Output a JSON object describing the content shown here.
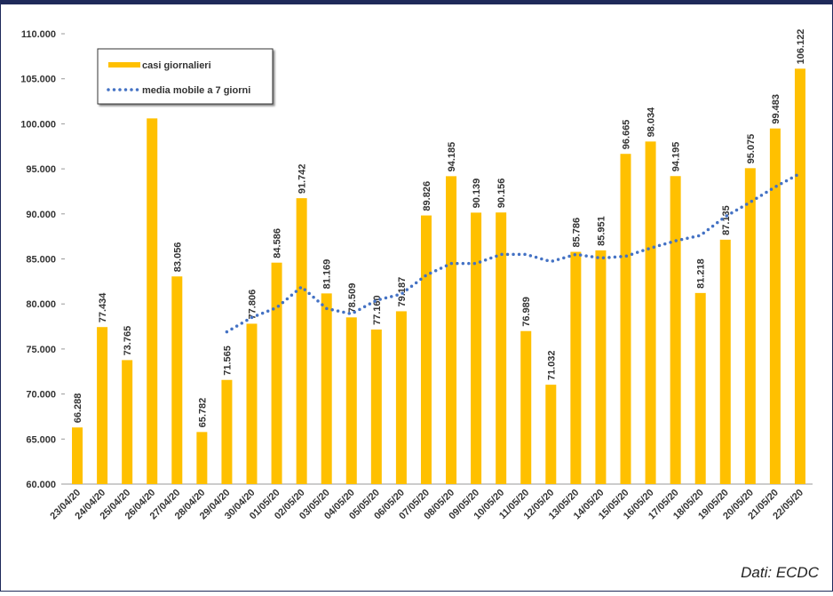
{
  "chart_data": {
    "type": "bar",
    "categories": [
      "23/04/20",
      "24/04/20",
      "25/04/20",
      "26/04/20",
      "27/04/20",
      "28/04/20",
      "29/04/20",
      "30/04/20",
      "01/05/20",
      "02/05/20",
      "03/05/20",
      "04/05/20",
      "05/05/20",
      "06/05/20",
      "07/05/20",
      "08/05/20",
      "09/05/20",
      "10/05/20",
      "11/05/20",
      "12/05/20",
      "13/05/20",
      "14/05/20",
      "15/05/20",
      "16/05/20",
      "17/05/20",
      "18/05/20",
      "19/05/20",
      "20/05/20",
      "21/05/20",
      "22/05/20"
    ],
    "series": [
      {
        "name": "casi giornalieri",
        "type": "bar",
        "color": "#ffc000",
        "values": [
          66288,
          77434,
          73765,
          100600,
          83056,
          65782,
          71565,
          77806,
          84586,
          91742,
          81169,
          78509,
          77160,
          79187,
          89826,
          94185,
          90139,
          90156,
          76989,
          71032,
          85786,
          85951,
          96665,
          98034,
          94195,
          81218,
          87135,
          95075,
          99483,
          106122
        ],
        "value_labels": [
          "66.288",
          "77.434",
          "73.765",
          null,
          "83.056",
          "65.782",
          "71.565",
          "77.806",
          "84.586",
          "91.742",
          "81.169",
          "78.509",
          "77.160",
          "79.187",
          "89.826",
          "94.185",
          "90.139",
          "90.156",
          "76.989",
          "71.032",
          "85.786",
          "85.951",
          "96.665",
          "98.034",
          "94.195",
          "81.218",
          "87.135",
          "95.075",
          "99.483",
          "106.122"
        ]
      },
      {
        "name": "media mobile a 7 giorni",
        "type": "line",
        "color": "#4472c4",
        "values": [
          null,
          null,
          null,
          null,
          null,
          null,
          76900,
          78500,
          79600,
          81900,
          79500,
          78900,
          80400,
          81100,
          83200,
          84500,
          84500,
          85500,
          85500,
          84700,
          85500,
          85100,
          85300,
          86200,
          87000,
          87600,
          89700,
          91300,
          93000,
          94500
        ]
      }
    ],
    "ylim": [
      60000,
      110000
    ],
    "yticks": [
      {
        "value": 60000,
        "label": "60.000"
      },
      {
        "value": 65000,
        "label": "65.000"
      },
      {
        "value": 70000,
        "label": "70.000"
      },
      {
        "value": 75000,
        "label": "75.000"
      },
      {
        "value": 80000,
        "label": "80.000"
      },
      {
        "value": 85000,
        "label": "85.000"
      },
      {
        "value": 90000,
        "label": "90.000"
      },
      {
        "value": 95000,
        "label": "95.000"
      },
      {
        "value": 100000,
        "label": "100.000"
      },
      {
        "value": 105000,
        "label": "105.000"
      },
      {
        "value": 110000,
        "label": "110.000"
      }
    ],
    "grid": false,
    "legend": "top-left",
    "source": "Dati: ECDC"
  }
}
